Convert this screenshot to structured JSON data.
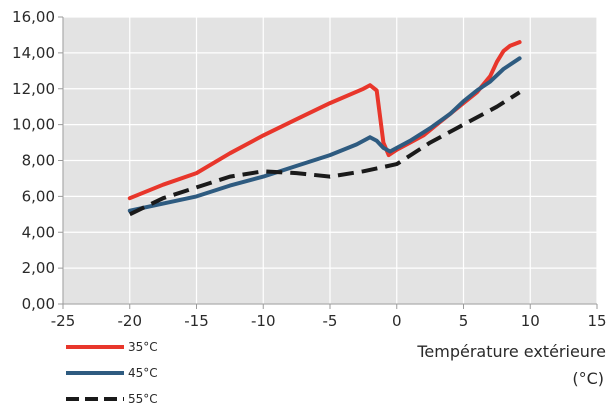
{
  "chart_data": {
    "type": "line",
    "title": "",
    "xlabel": "Température extérieure",
    "xunit": "(°C)",
    "ylabel": "",
    "xlim": [
      -25,
      15
    ],
    "ylim": [
      0,
      16
    ],
    "xticks": [
      -25,
      -20,
      -15,
      -10,
      -5,
      0,
      5,
      10,
      15
    ],
    "xtick_labels": [
      "-25",
      "-20",
      "-15",
      "-10",
      "-5",
      "0",
      "5",
      "10",
      "15"
    ],
    "yticks": [
      0,
      2,
      4,
      6,
      8,
      10,
      12,
      14,
      16
    ],
    "ytick_labels": [
      "0,00",
      "2,00",
      "4,00",
      "6,00",
      "8,00",
      "10,00",
      "12,00",
      "14,00",
      "16,00"
    ],
    "grid": true,
    "plot_background": "#e3e3e3",
    "grid_color": "#ffffff",
    "legend_position": "bottom-left",
    "series": [
      {
        "name": "35°C",
        "color": "#e8362b",
        "dash": "solid",
        "x": [
          -20,
          -17.5,
          -15,
          -12.5,
          -10,
          -7.5,
          -5,
          -2.5,
          -2.0,
          -1.5,
          -1.0,
          -0.6,
          0,
          1,
          2,
          3,
          4,
          5,
          6,
          7,
          7.5,
          8,
          8.5,
          9.2
        ],
        "y": [
          5.9,
          6.65,
          7.3,
          8.4,
          9.4,
          10.3,
          11.2,
          12.0,
          12.2,
          11.9,
          9.0,
          8.3,
          8.6,
          9.0,
          9.4,
          10.0,
          10.6,
          11.2,
          11.8,
          12.7,
          13.5,
          14.1,
          14.4,
          14.6
        ]
      },
      {
        "name": "45°C",
        "color": "#2e5b80",
        "dash": "solid",
        "x": [
          -20,
          -17.5,
          -15,
          -12.5,
          -10,
          -7.5,
          -5,
          -3,
          -2,
          -1.5,
          -1.0,
          -0.5,
          0,
          1,
          2.5,
          4,
          5,
          6,
          7,
          8,
          9.2
        ],
        "y": [
          5.2,
          5.6,
          6.0,
          6.6,
          7.1,
          7.7,
          8.3,
          8.9,
          9.3,
          9.1,
          8.7,
          8.5,
          8.7,
          9.1,
          9.8,
          10.6,
          11.3,
          11.9,
          12.4,
          13.1,
          13.7
        ]
      },
      {
        "name": "55°C",
        "color": "#1a1a1a",
        "dash": "dashed",
        "x": [
          -20,
          -17.5,
          -15,
          -12.5,
          -10,
          -7.5,
          -5,
          -2.5,
          0,
          2.5,
          5,
          7.5,
          9.2
        ],
        "y": [
          5.0,
          5.9,
          6.5,
          7.1,
          7.4,
          7.3,
          7.1,
          7.4,
          7.8,
          9.0,
          10.0,
          11.0,
          11.8
        ]
      }
    ]
  }
}
